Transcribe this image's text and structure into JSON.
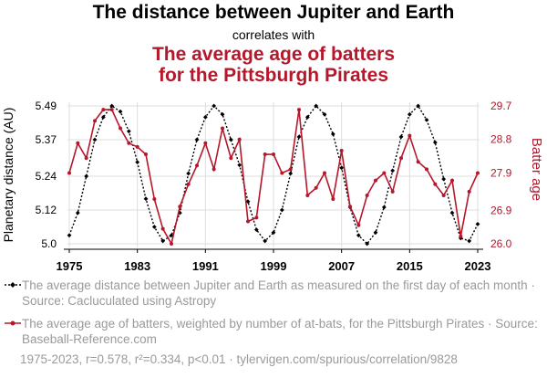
{
  "header": {
    "title": "The distance between Jupiter and Earth",
    "subtitle": "correlates with",
    "title2_line1": "The average age of batters",
    "title2_line2": "for the Pittsburgh Pirates"
  },
  "legend": {
    "series1": "The average distance between Jupiter and Earth as measured on the first day of each month · Source: Cacluculated using Astropy",
    "series2": "The average age of batters, weighted by number of at-bats, for the Pittsburgh Pirates · Source: Baseball-Reference.com"
  },
  "footer": "1975-2023, r=0.578, r²=0.334, p<0.01 · tylervigen.com/spurious/correlation/9828",
  "colors": {
    "jupiter": "#000000",
    "batters": "#b5172b",
    "grid": "#dddddd"
  },
  "chart_data": {
    "type": "line",
    "x": [
      1975,
      1976,
      1977,
      1978,
      1979,
      1980,
      1981,
      1982,
      1983,
      1984,
      1985,
      1986,
      1987,
      1988,
      1989,
      1990,
      1991,
      1992,
      1993,
      1994,
      1995,
      1996,
      1997,
      1998,
      1999,
      2000,
      2001,
      2002,
      2003,
      2004,
      2005,
      2006,
      2007,
      2008,
      2009,
      2010,
      2011,
      2012,
      2013,
      2014,
      2015,
      2016,
      2017,
      2018,
      2019,
      2020,
      2021,
      2022,
      2023
    ],
    "xticks": [
      "1975",
      "1983",
      "1991",
      "1999",
      "2007",
      "2015",
      "2023"
    ],
    "xlim": [
      1975,
      2023
    ],
    "series": [
      {
        "name": "Planetary distance (AU)",
        "axis": "left",
        "style": "dotted",
        "values": [
          5.03,
          5.11,
          5.24,
          5.37,
          5.45,
          5.49,
          5.47,
          5.4,
          5.29,
          5.16,
          5.06,
          5.01,
          5.03,
          5.11,
          5.25,
          5.37,
          5.45,
          5.49,
          5.46,
          5.37,
          5.28,
          5.15,
          5.05,
          5.01,
          5.04,
          5.12,
          5.25,
          5.38,
          5.45,
          5.49,
          5.46,
          5.39,
          5.27,
          5.13,
          5.03,
          5.0,
          5.04,
          5.13,
          5.26,
          5.38,
          5.46,
          5.49,
          5.44,
          5.36,
          5.23,
          5.11,
          5.02,
          5.01,
          5.07
        ]
      },
      {
        "name": "Batter age",
        "axis": "right",
        "style": "solid",
        "values": [
          27.9,
          28.7,
          28.3,
          29.3,
          29.6,
          29.6,
          29.1,
          28.7,
          28.6,
          28.4,
          27.2,
          26.4,
          26.0,
          27.0,
          27.6,
          28.1,
          28.7,
          28.0,
          29.1,
          28.3,
          28.8,
          26.6,
          26.7,
          28.4,
          28.4,
          27.9,
          28.0,
          29.6,
          27.3,
          27.5,
          27.9,
          27.2,
          28.5,
          27.0,
          26.5,
          27.3,
          27.7,
          27.9,
          27.4,
          28.3,
          28.9,
          28.2,
          28.0,
          27.6,
          27.3,
          27.7,
          26.2,
          27.4,
          27.9
        ]
      }
    ],
    "yleft": {
      "label": "Planetary distance (AU)",
      "ticks": [
        "5.0",
        "5.12",
        "5.24",
        "5.37",
        "5.49"
      ],
      "tickvals": [
        5.0,
        5.12,
        5.24,
        5.37,
        5.49
      ],
      "ylim": [
        5.0,
        5.49
      ]
    },
    "yright": {
      "label": "Batter age",
      "ticks": [
        "26.0",
        "26.9",
        "27.9",
        "28.8",
        "29.7"
      ],
      "tickvals": [
        26.0,
        26.9,
        27.9,
        28.8,
        29.7
      ],
      "ylim": [
        26.0,
        29.7
      ]
    }
  }
}
